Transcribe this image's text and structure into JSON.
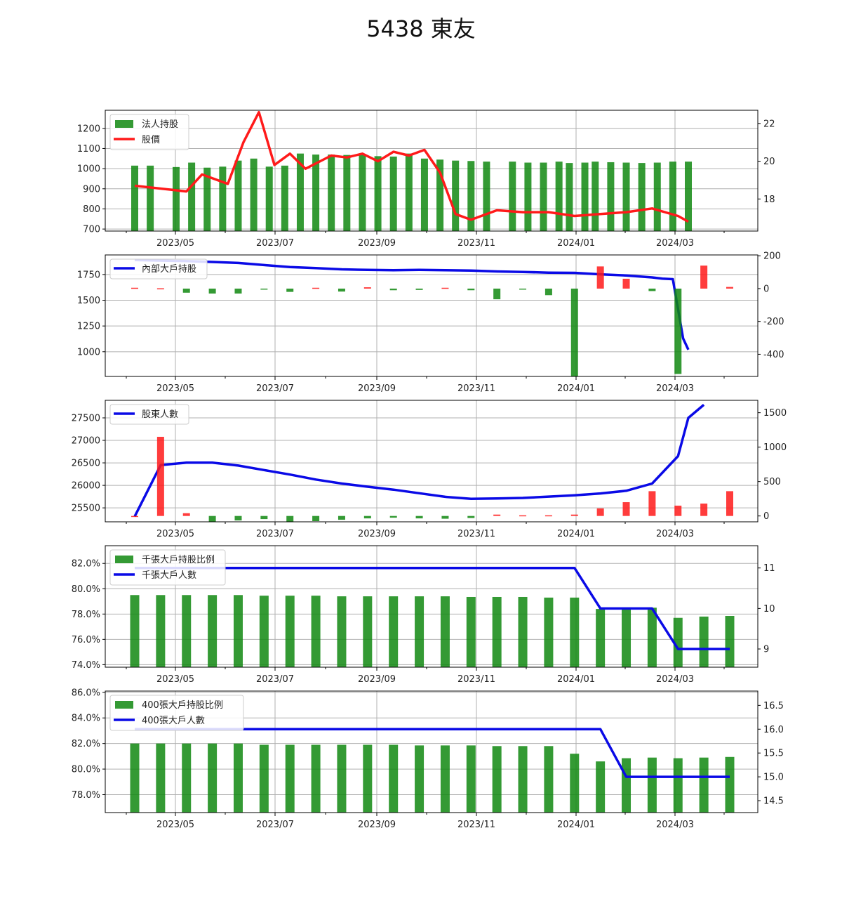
{
  "figure": {
    "title": "5438 東友"
  },
  "colors": {
    "green": "#118811",
    "red": "#ff1a1a",
    "blue": "#0a0ae6",
    "grid": "#b0b0b0"
  },
  "chart_data": [
    {
      "type": "bar+line",
      "x_tick_labels": [
        "2023/05",
        "2023/07",
        "2023/09",
        "2023/11",
        "2024/01",
        "2024/03"
      ],
      "left_ylim": [
        690,
        1290
      ],
      "left_ticks": [
        700,
        800,
        900,
        1000,
        1100,
        1200
      ],
      "right_ylim": [
        16.3,
        22.7
      ],
      "right_ticks": [
        18,
        20,
        22
      ],
      "legend": [
        "法人持股",
        "股價"
      ],
      "legend_position": "upper-left",
      "series": [
        {
          "name": "法人持股",
          "kind": "bar",
          "axis": "left",
          "values": [
            [
              0.0,
              1015
            ],
            [
              0.03,
              1015
            ],
            [
              0.08,
              1008
            ],
            [
              0.11,
              1030
            ],
            [
              0.14,
              1005
            ],
            [
              0.17,
              1010
            ],
            [
              0.2,
              1040
            ],
            [
              0.23,
              1050
            ],
            [
              0.26,
              1010
            ],
            [
              0.29,
              1015
            ],
            [
              0.32,
              1075
            ],
            [
              0.35,
              1070
            ],
            [
              0.38,
              1070
            ],
            [
              0.41,
              1068
            ],
            [
              0.44,
              1072
            ],
            [
              0.47,
              1062
            ],
            [
              0.5,
              1060
            ],
            [
              0.53,
              1075
            ],
            [
              0.56,
              1050
            ],
            [
              0.59,
              1045
            ],
            [
              0.62,
              1040
            ],
            [
              0.65,
              1038
            ],
            [
              0.68,
              1035
            ],
            [
              0.73,
              1035
            ],
            [
              0.76,
              1030
            ],
            [
              0.79,
              1030
            ],
            [
              0.82,
              1035
            ],
            [
              0.84,
              1028
            ],
            [
              0.87,
              1030
            ],
            [
              0.89,
              1035
            ],
            [
              0.92,
              1032
            ],
            [
              0.95,
              1030
            ],
            [
              0.98,
              1028
            ],
            [
              1.01,
              1030
            ],
            [
              1.04,
              1035
            ],
            [
              1.07,
              1035
            ]
          ]
        },
        {
          "name": "股價",
          "kind": "line",
          "axis": "right",
          "values": [
            [
              0.0,
              18.7
            ],
            [
              0.1,
              18.4
            ],
            [
              0.13,
              19.3
            ],
            [
              0.18,
              18.8
            ],
            [
              0.21,
              21.0
            ],
            [
              0.24,
              22.6
            ],
            [
              0.27,
              19.8
            ],
            [
              0.3,
              20.4
            ],
            [
              0.33,
              19.6
            ],
            [
              0.38,
              20.3
            ],
            [
              0.41,
              20.2
            ],
            [
              0.44,
              20.4
            ],
            [
              0.47,
              20.0
            ],
            [
              0.5,
              20.5
            ],
            [
              0.53,
              20.3
            ],
            [
              0.56,
              20.6
            ],
            [
              0.59,
              19.4
            ],
            [
              0.62,
              17.2
            ],
            [
              0.65,
              16.9
            ],
            [
              0.7,
              17.4
            ],
            [
              0.75,
              17.3
            ],
            [
              0.8,
              17.3
            ],
            [
              0.85,
              17.1
            ],
            [
              0.9,
              17.2
            ],
            [
              0.95,
              17.3
            ],
            [
              1.0,
              17.5
            ],
            [
              1.05,
              17.1
            ],
            [
              1.07,
              16.8
            ]
          ]
        }
      ]
    },
    {
      "type": "bar+line",
      "x_tick_labels": [
        "2023/05",
        "2023/07",
        "2023/09",
        "2023/11",
        "2024/01",
        "2024/03"
      ],
      "left_ylim": [
        760,
        1940
      ],
      "left_ticks": [
        1000,
        1250,
        1500,
        1750
      ],
      "right_ylim": [
        -535,
        205
      ],
      "right_ticks": [
        -400,
        -200,
        0,
        200
      ],
      "legend": [
        "內部大戶持股"
      ],
      "legend_position": "upper-left",
      "series": [
        {
          "name": "內部大戶持股",
          "kind": "line",
          "axis": "left",
          "values": [
            [
              0.0,
              1890
            ],
            [
              0.1,
              1880
            ],
            [
              0.15,
              1872
            ],
            [
              0.2,
              1862
            ],
            [
              0.25,
              1842
            ],
            [
              0.3,
              1822
            ],
            [
              0.35,
              1812
            ],
            [
              0.4,
              1800
            ],
            [
              0.45,
              1795
            ],
            [
              0.5,
              1792
            ],
            [
              0.55,
              1795
            ],
            [
              0.6,
              1792
            ],
            [
              0.65,
              1788
            ],
            [
              0.7,
              1780
            ],
            [
              0.75,
              1775
            ],
            [
              0.8,
              1768
            ],
            [
              0.85,
              1766
            ],
            [
              0.9,
              1752
            ],
            [
              0.95,
              1740
            ],
            [
              1.0,
              1722
            ],
            [
              1.02,
              1710
            ],
            [
              1.04,
              1705
            ],
            [
              1.06,
              1128
            ],
            [
              1.07,
              1020
            ]
          ]
        },
        {
          "name": "",
          "kind": "bar",
          "axis": "right",
          "values": [
            [
              0.0,
              5
            ],
            [
              0.05,
              2
            ],
            [
              0.1,
              -25
            ],
            [
              0.15,
              -30
            ],
            [
              0.2,
              -30
            ],
            [
              0.25,
              -5
            ],
            [
              0.3,
              -20
            ],
            [
              0.35,
              5
            ],
            [
              0.4,
              -18
            ],
            [
              0.45,
              8
            ],
            [
              0.5,
              -10
            ],
            [
              0.55,
              -8
            ],
            [
              0.6,
              5
            ],
            [
              0.65,
              -10
            ],
            [
              0.7,
              -65
            ],
            [
              0.75,
              -5
            ],
            [
              0.8,
              -40
            ],
            [
              0.85,
              -535
            ],
            [
              0.9,
              135
            ],
            [
              0.95,
              60
            ],
            [
              1.0,
              -15
            ],
            [
              1.05,
              -520
            ],
            [
              1.1,
              140
            ],
            [
              1.15,
              10
            ]
          ]
        }
      ]
    },
    {
      "type": "bar+line",
      "x_tick_labels": [
        "2023/05",
        "2023/07",
        "2023/09",
        "2023/11",
        "2024/01",
        "2024/03"
      ],
      "left_ylim": [
        25190,
        27890
      ],
      "left_ticks": [
        25500,
        26000,
        26500,
        27000,
        27500
      ],
      "right_ylim": [
        -85,
        1680
      ],
      "right_ticks": [
        0,
        500,
        1000,
        1500
      ],
      "legend": [
        "股東人數"
      ],
      "legend_position": "upper-left",
      "series": [
        {
          "name": "股東人數",
          "kind": "line",
          "axis": "left",
          "values": [
            [
              0.0,
              25310
            ],
            [
              0.05,
              26450
            ],
            [
              0.1,
              26505
            ],
            [
              0.15,
              26505
            ],
            [
              0.2,
              26440
            ],
            [
              0.25,
              26340
            ],
            [
              0.3,
              26240
            ],
            [
              0.35,
              26130
            ],
            [
              0.4,
              26040
            ],
            [
              0.45,
              25970
            ],
            [
              0.5,
              25905
            ],
            [
              0.55,
              25825
            ],
            [
              0.6,
              25745
            ],
            [
              0.65,
              25700
            ],
            [
              0.7,
              25710
            ],
            [
              0.75,
              25720
            ],
            [
              0.8,
              25750
            ],
            [
              0.85,
              25780
            ],
            [
              0.9,
              25820
            ],
            [
              0.95,
              25880
            ],
            [
              1.0,
              26040
            ],
            [
              1.05,
              26650
            ],
            [
              1.07,
              27500
            ],
            [
              1.1,
              27790
            ]
          ]
        },
        {
          "name": "",
          "kind": "bar",
          "axis": "right",
          "values": [
            [
              0.0,
              0
            ],
            [
              0.05,
              1150
            ],
            [
              0.1,
              40
            ],
            [
              0.15,
              -80
            ],
            [
              0.2,
              -65
            ],
            [
              0.25,
              -45
            ],
            [
              0.3,
              -85
            ],
            [
              0.35,
              -75
            ],
            [
              0.4,
              -55
            ],
            [
              0.45,
              -35
            ],
            [
              0.5,
              -25
            ],
            [
              0.55,
              -35
            ],
            [
              0.6,
              -40
            ],
            [
              0.65,
              -30
            ],
            [
              0.7,
              20
            ],
            [
              0.75,
              10
            ],
            [
              0.8,
              10
            ],
            [
              0.85,
              20
            ],
            [
              0.9,
              110
            ],
            [
              0.95,
              200
            ],
            [
              1.0,
              360
            ],
            [
              1.05,
              150
            ],
            [
              1.1,
              180
            ],
            [
              1.15,
              360
            ]
          ]
        }
      ]
    },
    {
      "type": "bar+line",
      "x_tick_labels": [
        "2023/05",
        "2023/07",
        "2023/09",
        "2023/11",
        "2024/01",
        "2024/03"
      ],
      "left_ylim": [
        73.8,
        83.4
      ],
      "left_ticks": [
        74.0,
        76.0,
        78.0,
        80.0,
        82.0
      ],
      "left_tick_labels": [
        "74.0%",
        "76.0%",
        "78.0%",
        "80.0%",
        "82.0%"
      ],
      "right_ylim": [
        8.55,
        11.55
      ],
      "right_ticks": [
        9,
        10,
        11
      ],
      "legend": [
        "千張大戶持股比例",
        "千張大戶人數"
      ],
      "legend_position": "upper-left",
      "series": [
        {
          "name": "千張大戶持股比例",
          "kind": "bar",
          "axis": "left",
          "values": [
            [
              0.0,
              79.5
            ],
            [
              0.05,
              79.5
            ],
            [
              0.1,
              79.5
            ],
            [
              0.15,
              79.5
            ],
            [
              0.2,
              79.5
            ],
            [
              0.25,
              79.45
            ],
            [
              0.3,
              79.45
            ],
            [
              0.35,
              79.45
            ],
            [
              0.4,
              79.4
            ],
            [
              0.45,
              79.4
            ],
            [
              0.5,
              79.4
            ],
            [
              0.55,
              79.4
            ],
            [
              0.6,
              79.4
            ],
            [
              0.65,
              79.35
            ],
            [
              0.7,
              79.35
            ],
            [
              0.75,
              79.35
            ],
            [
              0.8,
              79.3
            ],
            [
              0.85,
              79.3
            ],
            [
              0.9,
              78.4
            ],
            [
              0.95,
              78.5
            ],
            [
              1.0,
              78.5
            ],
            [
              1.05,
              77.7
            ],
            [
              1.1,
              77.8
            ],
            [
              1.15,
              77.85
            ]
          ]
        },
        {
          "name": "千張大戶人數",
          "kind": "line",
          "axis": "right",
          "values": [
            [
              0.0,
              11
            ],
            [
              0.85,
              11
            ],
            [
              0.9,
              10
            ],
            [
              1.0,
              10
            ],
            [
              1.05,
              9
            ],
            [
              1.15,
              9
            ]
          ]
        }
      ]
    },
    {
      "type": "bar+line",
      "x_tick_labels": [
        "2023/05",
        "2023/07",
        "2023/09",
        "2023/11",
        "2024/01",
        "2024/03"
      ],
      "left_ylim": [
        76.6,
        86.1
      ],
      "left_ticks": [
        78.0,
        80.0,
        82.0,
        84.0,
        86.0
      ],
      "left_tick_labels": [
        "78.0%",
        "80.0%",
        "82.0%",
        "84.0%",
        "86.0%"
      ],
      "right_ylim": [
        14.25,
        16.8
      ],
      "right_ticks": [
        14.5,
        15.0,
        15.5,
        16.0,
        16.5
      ],
      "legend": [
        "400張大戶持股比例",
        "400張大戶人數"
      ],
      "legend_position": "upper-left",
      "series": [
        {
          "name": "400張大戶持股比例",
          "kind": "bar",
          "axis": "left",
          "values": [
            [
              0.0,
              82.0
            ],
            [
              0.05,
              82.0
            ],
            [
              0.1,
              82.0
            ],
            [
              0.15,
              82.0
            ],
            [
              0.2,
              82.0
            ],
            [
              0.25,
              81.9
            ],
            [
              0.3,
              81.9
            ],
            [
              0.35,
              81.9
            ],
            [
              0.4,
              81.9
            ],
            [
              0.45,
              81.9
            ],
            [
              0.5,
              81.9
            ],
            [
              0.55,
              81.85
            ],
            [
              0.6,
              81.85
            ],
            [
              0.65,
              81.85
            ],
            [
              0.7,
              81.8
            ],
            [
              0.75,
              81.8
            ],
            [
              0.8,
              81.8
            ],
            [
              0.85,
              81.2
            ],
            [
              0.9,
              80.6
            ],
            [
              0.95,
              80.85
            ],
            [
              1.0,
              80.9
            ],
            [
              1.05,
              80.85
            ],
            [
              1.1,
              80.9
            ],
            [
              1.15,
              80.95
            ]
          ]
        },
        {
          "name": "400張大戶人數",
          "kind": "line",
          "axis": "right",
          "values": [
            [
              0.0,
              16
            ],
            [
              0.9,
              16
            ],
            [
              0.95,
              15
            ],
            [
              1.15,
              15
            ]
          ]
        }
      ]
    }
  ]
}
